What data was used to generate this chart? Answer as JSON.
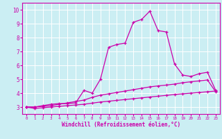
{
  "xlabel": "Windchill (Refroidissement éolien,°C)",
  "background_color": "#cbeef3",
  "grid_color": "#ffffff",
  "line_color": "#cc00aa",
  "x_data": [
    0,
    1,
    2,
    3,
    4,
    5,
    6,
    7,
    8,
    9,
    10,
    11,
    12,
    13,
    14,
    15,
    16,
    17,
    18,
    19,
    20,
    21,
    22,
    23
  ],
  "y_main": [
    3.0,
    3.0,
    3.1,
    3.2,
    3.25,
    3.25,
    3.3,
    4.2,
    4.0,
    5.0,
    7.3,
    7.5,
    7.6,
    9.1,
    9.3,
    9.9,
    8.5,
    8.4,
    6.1,
    5.3,
    5.2,
    5.4,
    5.5,
    4.2
  ],
  "y_line1": [
    3.0,
    3.0,
    3.05,
    3.1,
    3.2,
    3.3,
    3.4,
    3.5,
    3.7,
    3.85,
    3.95,
    4.05,
    4.15,
    4.25,
    4.35,
    4.45,
    4.52,
    4.58,
    4.65,
    4.75,
    4.82,
    4.88,
    4.95,
    4.1
  ],
  "y_line2": [
    3.0,
    2.9,
    2.95,
    3.0,
    3.05,
    3.1,
    3.15,
    3.2,
    3.28,
    3.36,
    3.42,
    3.48,
    3.54,
    3.6,
    3.66,
    3.72,
    3.78,
    3.84,
    3.9,
    3.95,
    4.0,
    4.05,
    4.1,
    4.15
  ],
  "xlim": [
    -0.5,
    23.5
  ],
  "ylim": [
    2.5,
    10.5
  ],
  "yticks": [
    3,
    4,
    5,
    6,
    7,
    8,
    9,
    10
  ],
  "xticks": [
    0,
    1,
    2,
    3,
    4,
    5,
    6,
    7,
    8,
    9,
    10,
    11,
    12,
    13,
    14,
    15,
    16,
    17,
    18,
    19,
    20,
    21,
    22,
    23
  ]
}
